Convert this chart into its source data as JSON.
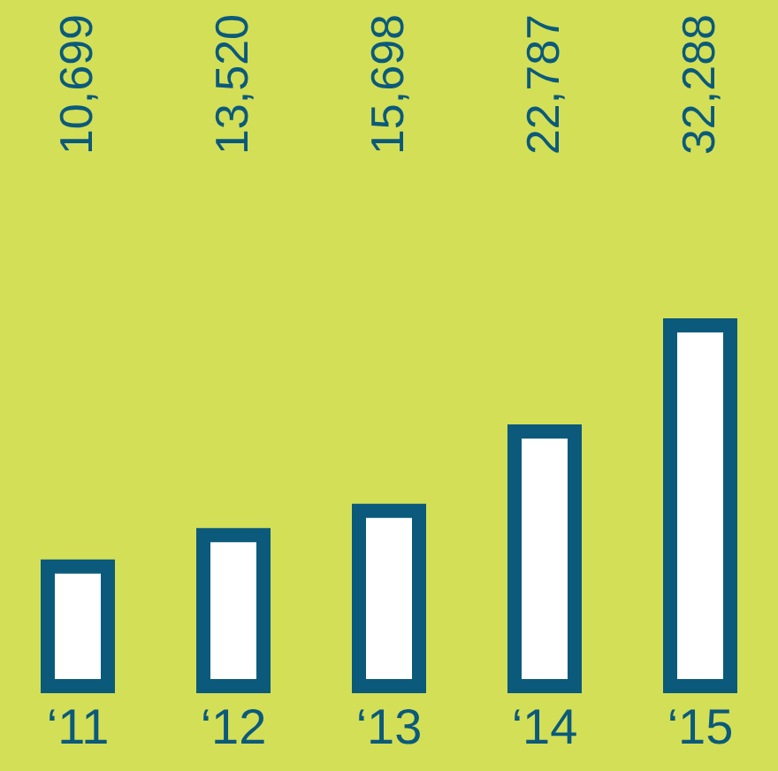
{
  "chart_data": {
    "type": "bar",
    "categories": [
      "‘11",
      "‘12",
      "‘13",
      "‘14",
      "‘15"
    ],
    "values": [
      10699,
      13520,
      15698,
      22787,
      32288
    ],
    "color": "#0b5a7c",
    "data_labels": true,
    "value_labels": [
      "10,699",
      "13,520",
      "15,698",
      "22,787",
      "32,288"
    ]
  }
}
